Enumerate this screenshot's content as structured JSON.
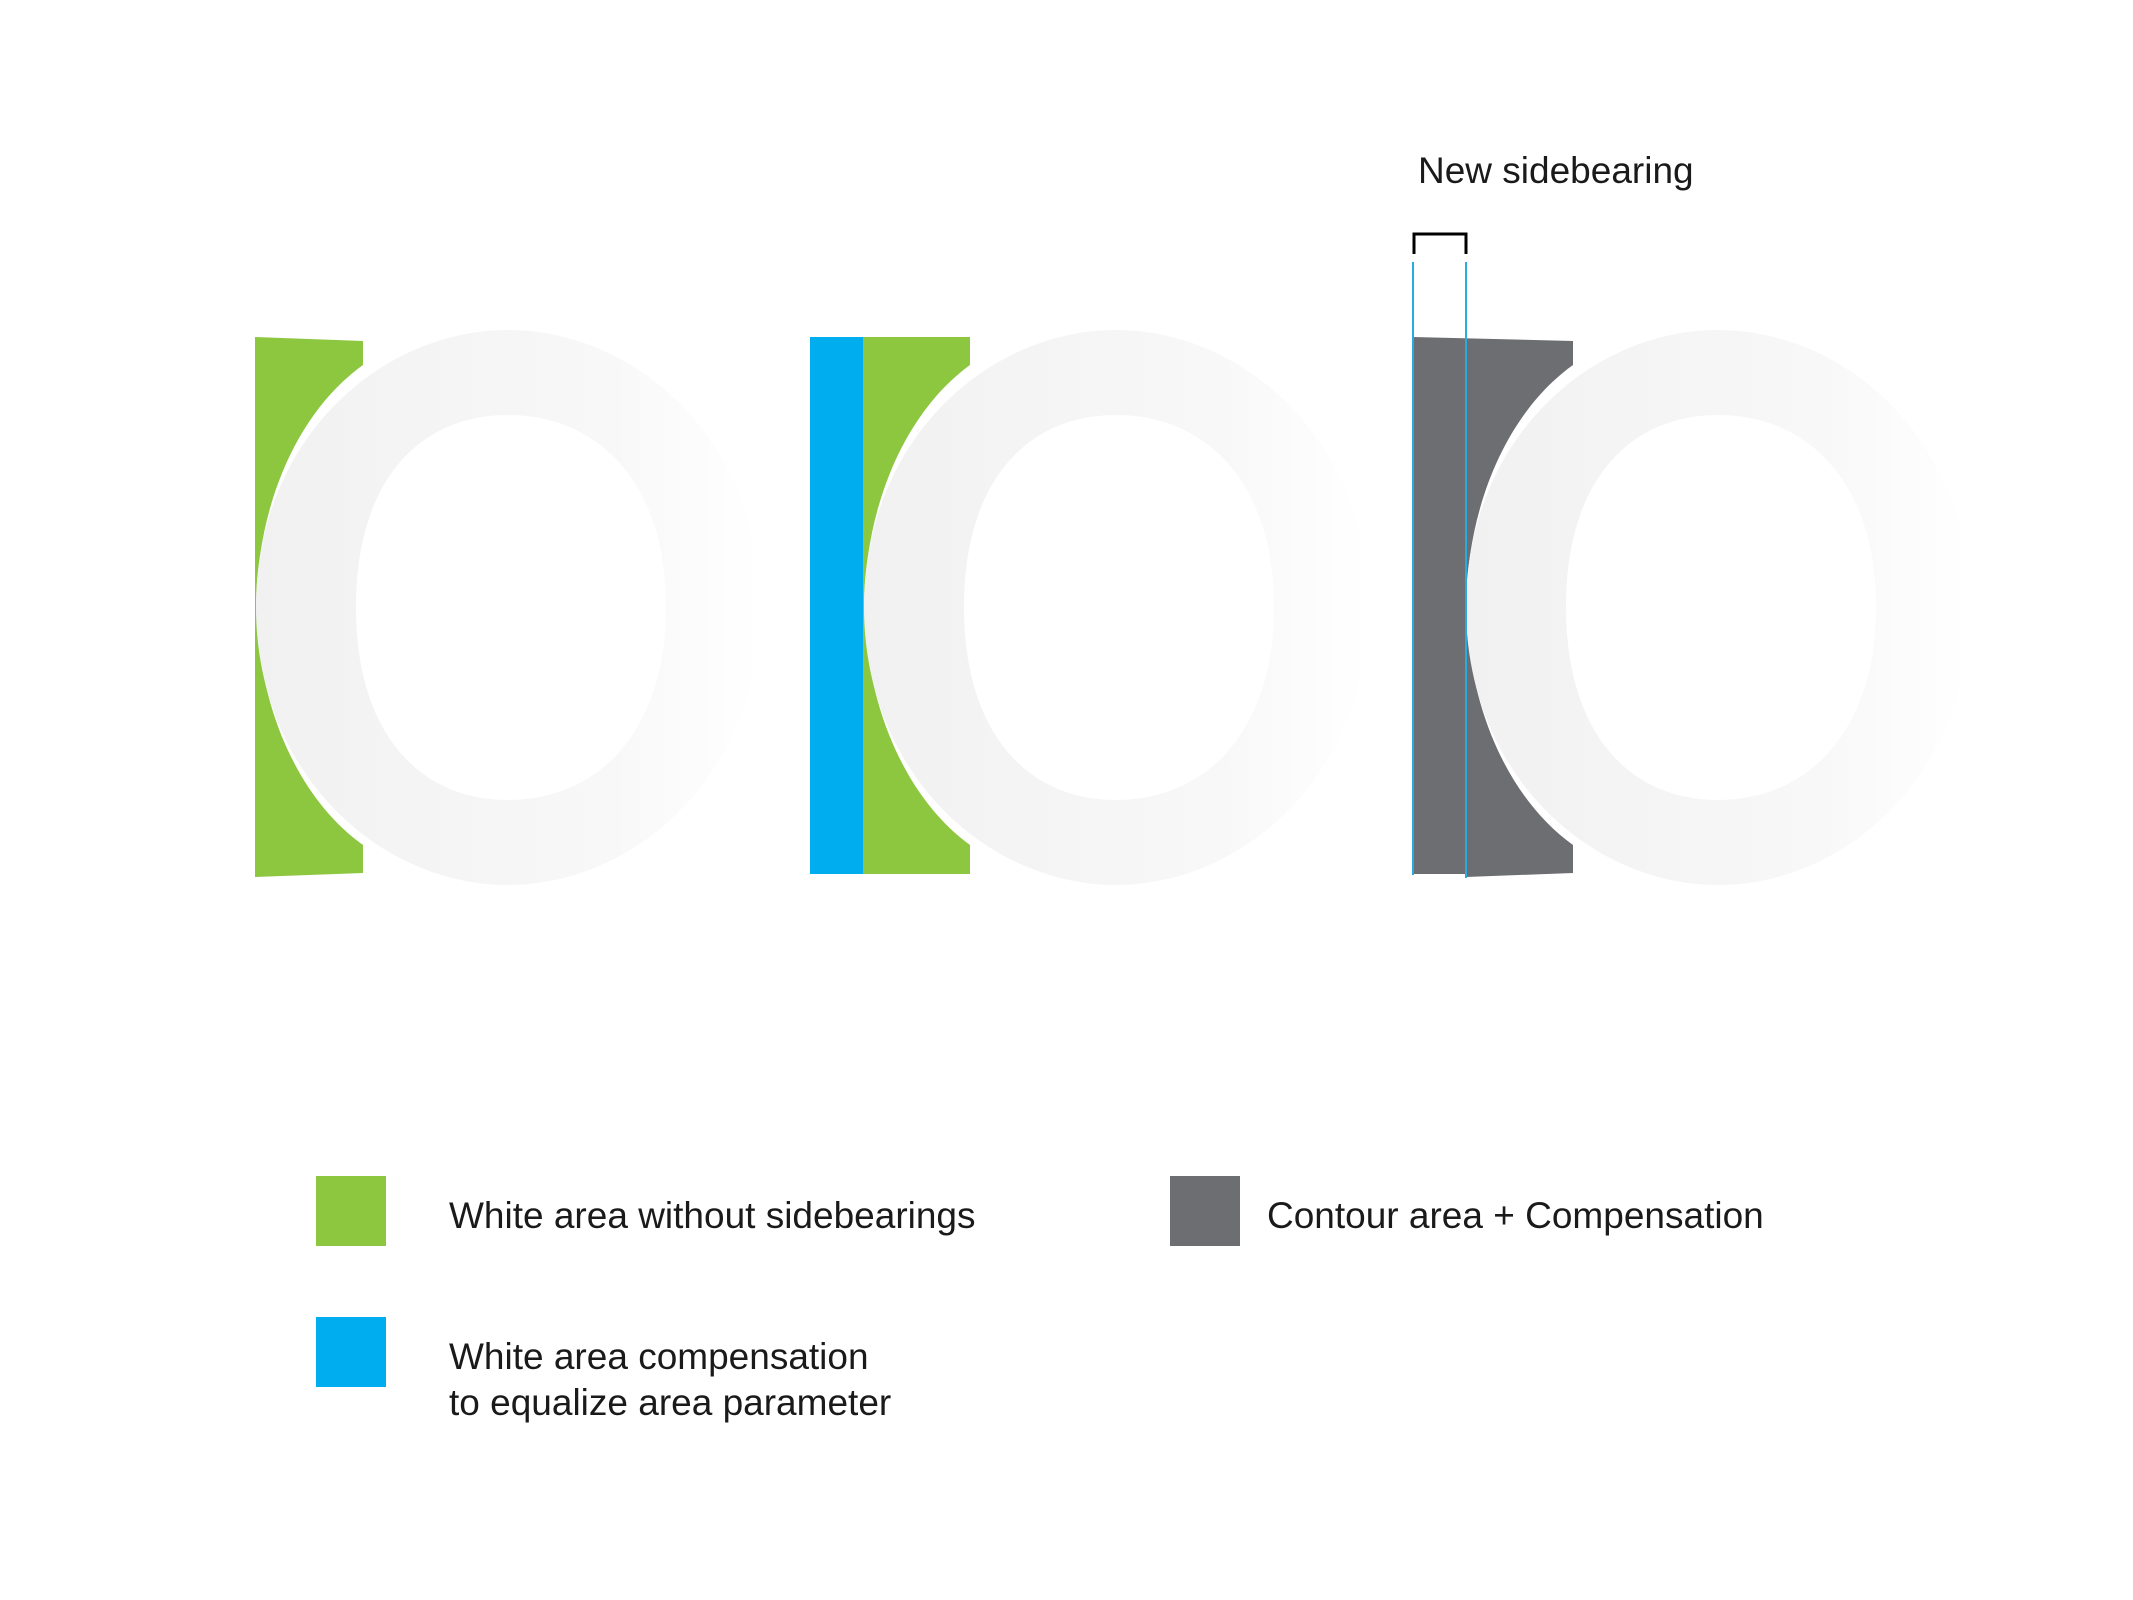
{
  "labels": {
    "new_sidebearing": "New sidebearing"
  },
  "legend": [
    {
      "label": "White area without sidebearings",
      "color": "#8dc63f"
    },
    {
      "label": "White area compensation\nto equalize area parameter",
      "color": "#00aeef"
    },
    {
      "label": "Contour area + Compensation",
      "color": "#6d6e71"
    }
  ],
  "colors": {
    "glyph_light": "#f4f4f4",
    "glyph_fade": "#ffffff",
    "white_area": "#8dc63f",
    "compensation": "#00aeef",
    "contour": "#6d6e71",
    "guide_line": "#29abe2",
    "bracket": "#000000"
  }
}
